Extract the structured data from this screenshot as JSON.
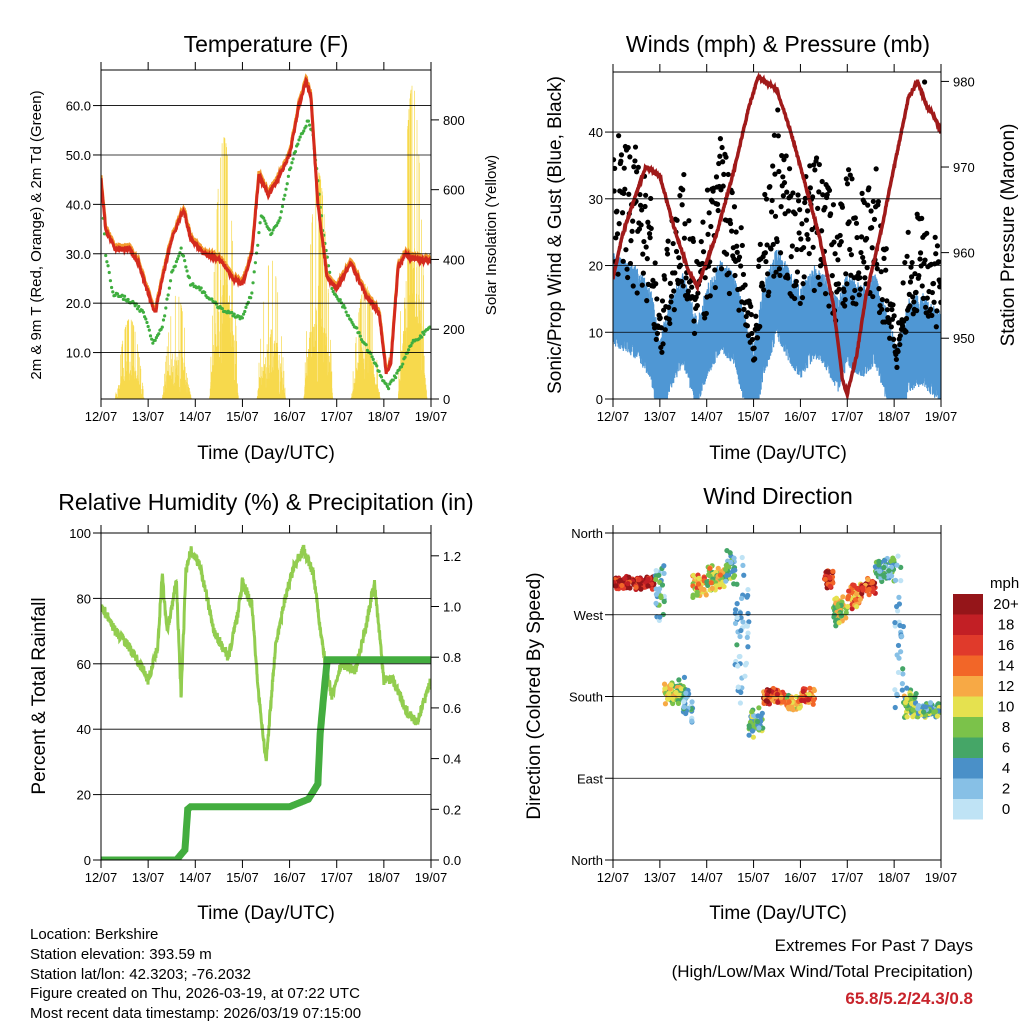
{
  "chart_data": [
    {
      "type": "line",
      "title": "Temperature (F)",
      "xlabel": "Time (Day/UTC)",
      "ylabel": "2m & 9m T (Red, Orange) & 2m Td (Green)",
      "y2label": "Solar Insolation (Yellow)",
      "x_ticks": [
        "12/07",
        "13/07",
        "14/07",
        "15/07",
        "16/07",
        "17/07",
        "18/07",
        "19/07"
      ],
      "xlim": [
        0,
        7
      ],
      "ylim": [
        0.6,
        67.2
      ],
      "y_ticks": [
        "10.0",
        "20.0",
        "30.0",
        "40.0",
        "50.0",
        "60.0"
      ],
      "y2lim": [
        0,
        943
      ],
      "y2_ticks": [
        "0",
        "200",
        "400",
        "600",
        "800"
      ],
      "grid": true,
      "colors": {
        "temp": "#d42a1e",
        "temp9m": "#f29a2e",
        "dewpoint": "#3fae3f",
        "solar": "#f7d94c"
      },
      "series": [
        {
          "name": "2m T",
          "points": [
            [
              0,
              45
            ],
            [
              0.1,
              35
            ],
            [
              0.3,
              31
            ],
            [
              0.6,
              31
            ],
            [
              0.8,
              28
            ],
            [
              1.0,
              22
            ],
            [
              1.15,
              18
            ],
            [
              1.3,
              25
            ],
            [
              1.5,
              33
            ],
            [
              1.75,
              39
            ],
            [
              1.9,
              33
            ],
            [
              2.2,
              30
            ],
            [
              2.5,
              29
            ],
            [
              2.8,
              25
            ],
            [
              3.0,
              24
            ],
            [
              3.2,
              30
            ],
            [
              3.35,
              46
            ],
            [
              3.55,
              42
            ],
            [
              3.8,
              46
            ],
            [
              4.0,
              50
            ],
            [
              4.2,
              60
            ],
            [
              4.35,
              65
            ],
            [
              4.45,
              62
            ],
            [
              4.6,
              40
            ],
            [
              4.8,
              25
            ],
            [
              5.0,
              23
            ],
            [
              5.3,
              28
            ],
            [
              5.6,
              22
            ],
            [
              5.9,
              18
            ],
            [
              6.05,
              6
            ],
            [
              6.15,
              8
            ],
            [
              6.3,
              27
            ],
            [
              6.45,
              30
            ],
            [
              6.6,
              29
            ],
            [
              7,
              28.5
            ]
          ]
        },
        {
          "name": "2m Td",
          "points": [
            [
              0,
              45
            ],
            [
              0.1,
              30
            ],
            [
              0.25,
              22
            ],
            [
              0.5,
              21
            ],
            [
              0.7,
              20
            ],
            [
              0.9,
              18
            ],
            [
              1.1,
              12
            ],
            [
              1.3,
              15
            ],
            [
              1.5,
              26
            ],
            [
              1.7,
              31
            ],
            [
              1.9,
              24
            ],
            [
              2.1,
              23
            ],
            [
              2.4,
              20
            ],
            [
              2.7,
              18
            ],
            [
              3.0,
              17
            ],
            [
              3.2,
              22
            ],
            [
              3.4,
              38
            ],
            [
              3.6,
              34
            ],
            [
              3.8,
              37
            ],
            [
              4.0,
              47
            ],
            [
              4.2,
              53
            ],
            [
              4.4,
              57
            ],
            [
              4.5,
              54
            ],
            [
              4.7,
              35
            ],
            [
              4.9,
              23
            ],
            [
              5.1,
              20
            ],
            [
              5.4,
              15
            ],
            [
              5.7,
              10
            ],
            [
              5.95,
              5
            ],
            [
              6.1,
              3
            ],
            [
              6.3,
              6
            ],
            [
              6.6,
              12
            ],
            [
              7,
              15
            ]
          ]
        },
        {
          "name": "Solar daily peaks",
          "points": [
            [
              0.6,
              230
            ],
            [
              1.6,
              300
            ],
            [
              2.55,
              750
            ],
            [
              3.55,
              400
            ],
            [
              4.55,
              650
            ],
            [
              5.55,
              330
            ],
            [
              6.5,
              900
            ],
            [
              6.7,
              700
            ]
          ]
        }
      ]
    },
    {
      "type": "line",
      "title": "Winds (mph) & Pressure (mb)",
      "xlabel": "Time (Day/UTC)",
      "ylabel": "Sonic/Prop Wind & Gust (Blue, Black)",
      "y2label": "Station Pressure (Maroon)",
      "x_ticks": [
        "12/07",
        "13/07",
        "14/07",
        "15/07",
        "16/07",
        "17/07",
        "18/07",
        "19/07"
      ],
      "xlim": [
        0,
        7
      ],
      "ylim": [
        0,
        49
      ],
      "y_ticks": [
        "0",
        "10",
        "20",
        "30",
        "40"
      ],
      "y2lim": [
        942.9,
        981.1
      ],
      "y2_ticks": [
        "950",
        "960",
        "970",
        "980"
      ],
      "grid": true,
      "colors": {
        "wind": "#4f97d4",
        "gust": "#000000",
        "pressure": "#a01a1a"
      },
      "series": [
        {
          "name": "Pressure",
          "points": [
            [
              0,
              957
            ],
            [
              0.2,
              962
            ],
            [
              0.5,
              967
            ],
            [
              0.7,
              970
            ],
            [
              1.0,
              969
            ],
            [
              1.3,
              963
            ],
            [
              1.6,
              958
            ],
            [
              1.8,
              956
            ],
            [
              2.2,
              962
            ],
            [
              2.6,
              970
            ],
            [
              2.9,
              977
            ],
            [
              3.1,
              980.5
            ],
            [
              3.5,
              979
            ],
            [
              3.8,
              974
            ],
            [
              4.1,
              968
            ],
            [
              4.4,
              962
            ],
            [
              4.7,
              954
            ],
            [
              4.9,
              945
            ],
            [
              5.0,
              943.5
            ],
            [
              5.2,
              948
            ],
            [
              5.4,
              955
            ],
            [
              5.7,
              962
            ],
            [
              6.0,
              970
            ],
            [
              6.3,
              978
            ],
            [
              6.5,
              980
            ],
            [
              6.7,
              977
            ],
            [
              6.85,
              976
            ],
            [
              7.0,
              974
            ]
          ]
        },
        {
          "name": "Wind speed (mean)",
          "points": [
            [
              0,
              15
            ],
            [
              0.5,
              13
            ],
            [
              0.8,
              10
            ],
            [
              1.0,
              2
            ],
            [
              1.2,
              8
            ],
            [
              1.5,
              12
            ],
            [
              1.8,
              5
            ],
            [
              2.0,
              10
            ],
            [
              2.3,
              14
            ],
            [
              2.6,
              12
            ],
            [
              2.8,
              6
            ],
            [
              3.0,
              1
            ],
            [
              3.2,
              10
            ],
            [
              3.5,
              16
            ],
            [
              3.8,
              12
            ],
            [
              4.0,
              10
            ],
            [
              4.3,
              13
            ],
            [
              4.5,
              12
            ],
            [
              4.8,
              8
            ],
            [
              5.0,
              12
            ],
            [
              5.3,
              10
            ],
            [
              5.6,
              12
            ],
            [
              5.9,
              5
            ],
            [
              6.05,
              1
            ],
            [
              6.3,
              8
            ],
            [
              6.6,
              9
            ],
            [
              7,
              6
            ]
          ]
        },
        {
          "name": "Max gust",
          "points": [
            [
              6.65,
              47.5
            ]
          ]
        }
      ]
    },
    {
      "type": "line",
      "title": "Relative Humidity (%) & Precipitation (in)",
      "xlabel": "Time (Day/UTC)",
      "ylabel": "Percent & Total Rainfall",
      "x_ticks": [
        "12/07",
        "13/07",
        "14/07",
        "15/07",
        "16/07",
        "17/07",
        "18/07",
        "19/07"
      ],
      "xlim": [
        0,
        7
      ],
      "ylim": [
        0,
        100
      ],
      "y_ticks": [
        "0",
        "20",
        "40",
        "60",
        "80",
        "100"
      ],
      "y2lim": [
        0,
        1.29
      ],
      "y2_ticks": [
        "0.0",
        "0.2",
        "0.4",
        "0.6",
        "0.8",
        "1.0",
        "1.2"
      ],
      "grid": true,
      "colors": {
        "rh": "#92cd4f",
        "precip": "#43ad3f"
      },
      "series": [
        {
          "name": "RH",
          "points": [
            [
              0,
              78
            ],
            [
              0.3,
              70
            ],
            [
              0.6,
              65
            ],
            [
              0.9,
              58
            ],
            [
              1.0,
              55
            ],
            [
              1.2,
              65
            ],
            [
              1.3,
              87
            ],
            [
              1.4,
              70
            ],
            [
              1.6,
              85
            ],
            [
              1.7,
              50
            ],
            [
              1.8,
              88
            ],
            [
              1.9,
              95
            ],
            [
              2.1,
              90
            ],
            [
              2.4,
              70
            ],
            [
              2.7,
              62
            ],
            [
              2.9,
              75
            ],
            [
              3.0,
              85
            ],
            [
              3.2,
              78
            ],
            [
              3.35,
              50
            ],
            [
              3.5,
              30
            ],
            [
              3.7,
              65
            ],
            [
              3.9,
              80
            ],
            [
              4.1,
              90
            ],
            [
              4.3,
              95
            ],
            [
              4.5,
              88
            ],
            [
              4.7,
              65
            ],
            [
              4.9,
              50
            ],
            [
              5.1,
              60
            ],
            [
              5.4,
              58
            ],
            [
              5.6,
              70
            ],
            [
              5.8,
              85
            ],
            [
              6.0,
              55
            ],
            [
              6.2,
              55
            ],
            [
              6.5,
              45
            ],
            [
              6.7,
              42
            ],
            [
              7,
              55
            ]
          ]
        },
        {
          "name": "Total precipitation",
          "points": [
            [
              0,
              0
            ],
            [
              1.6,
              0
            ],
            [
              1.78,
              0.04
            ],
            [
              1.84,
              0.2
            ],
            [
              1.9,
              0.21
            ],
            [
              4.0,
              0.21
            ],
            [
              4.4,
              0.24
            ],
            [
              4.6,
              0.3
            ],
            [
              4.65,
              0.5
            ],
            [
              4.75,
              0.7
            ],
            [
              4.8,
              0.79
            ],
            [
              7,
              0.79
            ]
          ]
        }
      ]
    },
    {
      "type": "scatter",
      "title": "Wind Direction",
      "xlabel": "Time (Day/UTC)",
      "ylabel": "Direction (Colored By Speed)",
      "x_ticks": [
        "12/07",
        "13/07",
        "14/07",
        "15/07",
        "16/07",
        "17/07",
        "18/07",
        "19/07"
      ],
      "xlim": [
        0,
        7
      ],
      "ylim": [
        0,
        360
      ],
      "y_ticks": [
        "North",
        "East",
        "South",
        "West",
        "North"
      ],
      "grid": true,
      "legend": {
        "title": "mph",
        "placement": "right",
        "entries": [
          "20+",
          "18",
          "16",
          "14",
          "12",
          "10",
          "8",
          "6",
          "4",
          "2",
          "0"
        ],
        "colors": [
          "#951519",
          "#c21f25",
          "#e03a2b",
          "#f26628",
          "#f7a945",
          "#e5e14f",
          "#7bc24a",
          "#45a667",
          "#4a90c8",
          "#87c0e6",
          "#bfe3f5"
        ]
      },
      "segments": [
        [
          0,
          0.9,
          305,
          8,
          18
        ],
        [
          0.9,
          1.1,
          290,
          40,
          4
        ],
        [
          1.1,
          1.5,
          185,
          15,
          9
        ],
        [
          1.5,
          1.7,
          170,
          35,
          4
        ],
        [
          1.7,
          2.0,
          300,
          15,
          12
        ],
        [
          2.0,
          2.4,
          310,
          15,
          10
        ],
        [
          2.4,
          2.6,
          322,
          20,
          6
        ],
        [
          2.6,
          2.9,
          250,
          90,
          2
        ],
        [
          2.9,
          3.2,
          150,
          20,
          6
        ],
        [
          3.2,
          3.7,
          180,
          10,
          16
        ],
        [
          3.7,
          4.0,
          172,
          10,
          10
        ],
        [
          4.0,
          4.3,
          180,
          10,
          14
        ],
        [
          4.5,
          4.7,
          310,
          12,
          17
        ],
        [
          4.7,
          5.0,
          275,
          20,
          9
        ],
        [
          5.0,
          5.3,
          290,
          15,
          14
        ],
        [
          5.3,
          5.6,
          300,
          12,
          16
        ],
        [
          5.6,
          6.0,
          320,
          15,
          5
        ],
        [
          6.0,
          6.2,
          250,
          100,
          2
        ],
        [
          6.2,
          6.5,
          170,
          20,
          8
        ],
        [
          6.5,
          7.0,
          165,
          10,
          6
        ]
      ]
    }
  ],
  "info": {
    "location": "Location: Berkshire",
    "elevation": "Station elevation: 393.59 m",
    "latlon": "Station lat/lon: 42.3203; -76.2032",
    "created": "Figure created on Thu, 2026-03-19, at 07:22 UTC",
    "recent": "Most recent data timestamp: 2026/03/19 07:15:00"
  },
  "extremes": {
    "line1": "Extremes For Past 7 Days",
    "line2": "(High/Low/Max Wind/Total Precipitation)",
    "values": "65.8/5.2/24.3/0.8",
    "color": "#c8232b"
  }
}
